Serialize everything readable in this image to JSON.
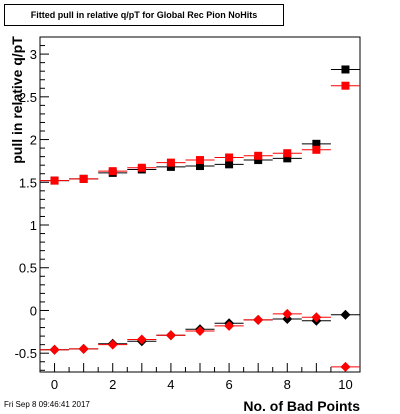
{
  "chart_data": {
    "type": "scatter",
    "title": "Fitted pull in relative q/pT for Global Rec Pion NoHits",
    "xlabel": "No. of Bad Points",
    "ylabel": "pull in relative q/pT",
    "xlim": [
      -0.5,
      10.5
    ],
    "ylim": [
      -0.72,
      3.2
    ],
    "xticks": [
      0,
      2,
      4,
      6,
      8,
      10
    ],
    "yticks": [
      -0.5,
      0,
      0.5,
      1,
      1.5,
      2,
      2.5,
      3
    ],
    "grid": false,
    "series": [
      {
        "marker": "square",
        "color": "#000000",
        "x": [
          0,
          1,
          2,
          3,
          4,
          5,
          6,
          7,
          8,
          9,
          10
        ],
        "y": [
          1.52,
          1.54,
          1.61,
          1.65,
          1.68,
          1.69,
          1.71,
          1.76,
          1.78,
          1.95,
          2.82
        ]
      },
      {
        "marker": "square",
        "color": "#ff0000",
        "x": [
          0,
          1,
          2,
          3,
          4,
          5,
          6,
          7,
          8,
          9,
          10
        ],
        "y": [
          1.52,
          1.54,
          1.63,
          1.67,
          1.73,
          1.76,
          1.79,
          1.81,
          1.84,
          1.88,
          2.63
        ]
      },
      {
        "marker": "diamond",
        "color": "#000000",
        "x": [
          0,
          1,
          2,
          3,
          4,
          5,
          6,
          7,
          8,
          9,
          10
        ],
        "y": [
          -0.46,
          -0.45,
          -0.39,
          -0.36,
          -0.29,
          -0.22,
          -0.15,
          -0.11,
          -0.1,
          -0.12,
          -0.05
        ]
      },
      {
        "marker": "diamond",
        "color": "#ff0000",
        "x": [
          0,
          1,
          2,
          3,
          4,
          5,
          6,
          7,
          8,
          9,
          10
        ],
        "y": [
          -0.46,
          -0.45,
          -0.4,
          -0.34,
          -0.29,
          -0.24,
          -0.18,
          -0.11,
          -0.04,
          -0.08,
          -0.66
        ]
      }
    ]
  },
  "footer": {
    "date": "Fri Sep  8 09:46:41 2017"
  }
}
